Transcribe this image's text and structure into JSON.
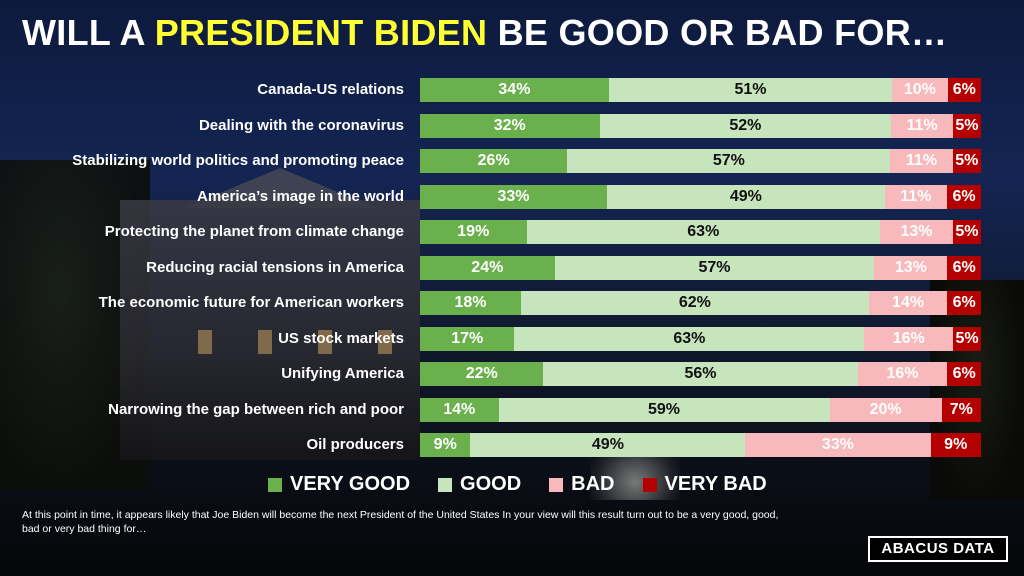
{
  "title": {
    "prefix": "WILL A ",
    "highlight": "PRESIDENT BIDEN",
    "suffix": " BE GOOD OR BAD FOR…"
  },
  "colors": {
    "very_good": "#6ab04c",
    "good": "#c6e5bd",
    "bad": "#f8b9bd",
    "very_bad": "#b40000",
    "highlight": "#ffff33"
  },
  "chart_data": {
    "type": "bar",
    "orientation": "horizontal",
    "stacked": true,
    "categories": [
      "Canada-US relations",
      "Dealing with the coronavirus",
      "Stabilizing world politics and promoting peace",
      "America’s image in the world",
      "Protecting the planet from climate change",
      "Reducing racial tensions in America",
      "The economic future for American workers",
      "US stock markets",
      "Unifying America",
      "Narrowing the gap between rich and poor",
      "Oil producers"
    ],
    "series": [
      {
        "name": "VERY GOOD",
        "values": [
          34,
          32,
          26,
          33,
          19,
          24,
          18,
          17,
          22,
          14,
          9
        ]
      },
      {
        "name": "GOOD",
        "values": [
          51,
          52,
          57,
          49,
          63,
          57,
          62,
          63,
          56,
          59,
          49
        ]
      },
      {
        "name": "BAD",
        "values": [
          10,
          11,
          11,
          11,
          13,
          13,
          14,
          16,
          16,
          20,
          33
        ]
      },
      {
        "name": "VERY BAD",
        "values": [
          6,
          5,
          5,
          6,
          5,
          6,
          6,
          5,
          6,
          7,
          9
        ]
      }
    ],
    "value_suffix": "%",
    "legend_position": "bottom"
  },
  "legend": [
    "VERY GOOD",
    "GOOD",
    "BAD",
    "VERY BAD"
  ],
  "footnote": "At this point in time, it appears likely that Joe Biden will become the next President of the United States  In your view will this result turn out to be a very good, good, bad or very bad thing for…",
  "logo": "ABACUS DATA"
}
